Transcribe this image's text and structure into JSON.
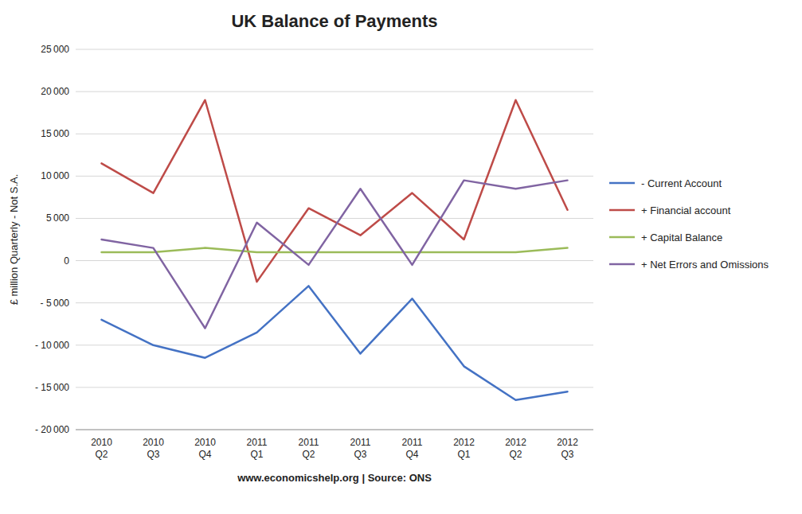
{
  "chart_data": {
    "type": "line",
    "title": "UK Balance of Payments",
    "y_label": "£ million Quarterly - Not S.A.",
    "annotations": [
      "www.economicshelp.org | Source: ONS"
    ],
    "categories": [
      "2010\nQ2",
      "2010\nQ3",
      "2010\nQ4",
      "2011\nQ1",
      "2011\nQ2",
      "2011\nQ3",
      "2011\nQ4",
      "2012\nQ1",
      "2012\nQ2",
      "2012\nQ3"
    ],
    "series": [
      {
        "name": "- Current Account",
        "color": "#4472C4",
        "values": [
          -7000,
          -10000,
          -11500,
          -8500,
          -3000,
          -11000,
          -4500,
          -12500,
          -16500,
          -15500
        ]
      },
      {
        "name": "+ Financial account",
        "color": "#BE4B48",
        "values": [
          11500,
          8000,
          19000,
          -2500,
          6200,
          3000,
          8000,
          2500,
          19000,
          6000
        ]
      },
      {
        "name": "+ Capital Balance",
        "color": "#9BBB59",
        "values": [
          1000,
          1000,
          1500,
          1000,
          1000,
          1000,
          1000,
          1000,
          1000,
          1500
        ]
      },
      {
        "name": "+ Net Errors and Omissions",
        "color": "#8064A2",
        "values": [
          2500,
          1500,
          -8000,
          4500,
          -500,
          8500,
          -500,
          9500,
          8500,
          9500
        ]
      }
    ],
    "ylim": [
      -20000,
      25000
    ],
    "yticks": [
      {
        "value": -20000,
        "label": "- 20 000"
      },
      {
        "value": -15000,
        "label": "- 15 000"
      },
      {
        "value": -10000,
        "label": "- 10 000"
      },
      {
        "value": -5000,
        "label": "- 5 000"
      },
      0,
      {
        "value": 5000,
        "label": "5 000"
      },
      {
        "value": 10000,
        "label": "10 000"
      },
      {
        "value": 15000,
        "label": "15 000"
      },
      {
        "value": 20000,
        "label": "20 000"
      },
      {
        "value": 25000,
        "label": "25 000"
      }
    ],
    "grid": true,
    "legend": "right"
  }
}
